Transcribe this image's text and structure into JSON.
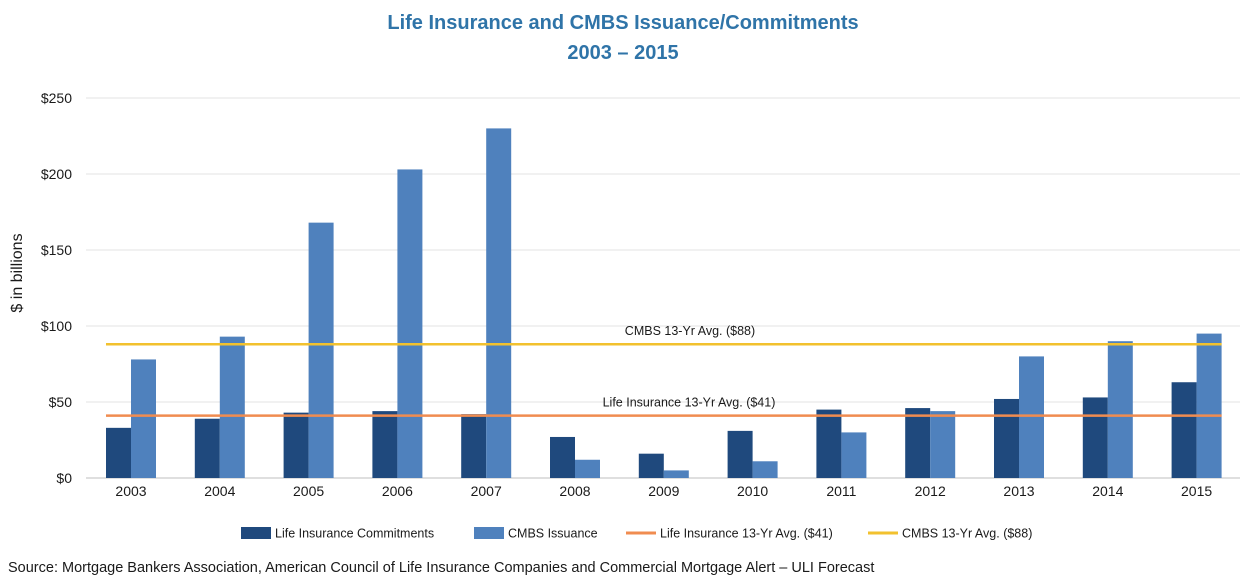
{
  "chart_data": {
    "type": "bar",
    "title_line1": "Life Insurance and CMBS Issuance/Commitments",
    "title_line2": "2003 – 2015",
    "ylabel": "$ in billions",
    "ylim": [
      0,
      250
    ],
    "yticks": [
      0,
      50,
      100,
      150,
      200,
      250
    ],
    "ytick_labels": [
      "$0",
      "$50",
      "$100",
      "$150",
      "$200",
      "$250"
    ],
    "grid": true,
    "legend_position": "bottom",
    "categories": [
      "2003",
      "2004",
      "2005",
      "2006",
      "2007",
      "2008",
      "2009",
      "2010",
      "2011",
      "2012",
      "2013",
      "2014",
      "2015"
    ],
    "series": [
      {
        "name": "Life Insurance Commitments",
        "color": "#1f497d",
        "values": [
          33,
          39,
          43,
          44,
          42,
          27,
          16,
          31,
          45,
          46,
          52,
          53,
          63
        ]
      },
      {
        "name": "CMBS Issuance",
        "color": "#4f81bd",
        "values": [
          78,
          93,
          168,
          203,
          230,
          12,
          5,
          11,
          30,
          44,
          80,
          90,
          95
        ]
      }
    ],
    "reference_lines": [
      {
        "name": "Life Insurance 13-Yr Avg. ($41)",
        "value": 41,
        "color": "#f08c50",
        "annotation": "Life Insurance 13-Yr Avg. ($41)"
      },
      {
        "name": "CMBS 13-Yr Avg. ($88)",
        "value": 88,
        "color": "#f2c12e",
        "annotation": "CMBS 13-Yr Avg. ($88)"
      }
    ]
  },
  "source": "Source: Mortgage Bankers Association, American Council of Life Insurance Companies and Commercial Mortgage Alert – ULI Forecast"
}
